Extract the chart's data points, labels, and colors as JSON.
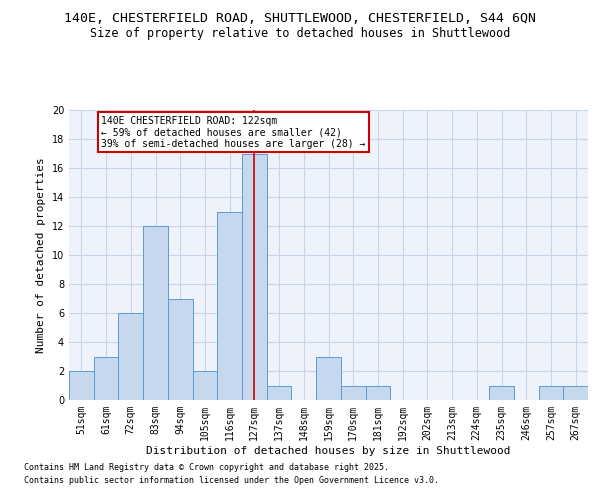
{
  "title_line1": "140E, CHESTERFIELD ROAD, SHUTTLEWOOD, CHESTERFIELD, S44 6QN",
  "title_line2": "Size of property relative to detached houses in Shuttlewood",
  "xlabel": "Distribution of detached houses by size in Shuttlewood",
  "ylabel": "Number of detached properties",
  "categories": [
    "51sqm",
    "61sqm",
    "72sqm",
    "83sqm",
    "94sqm",
    "105sqm",
    "116sqm",
    "127sqm",
    "137sqm",
    "148sqm",
    "159sqm",
    "170sqm",
    "181sqm",
    "192sqm",
    "202sqm",
    "213sqm",
    "224sqm",
    "235sqm",
    "246sqm",
    "257sqm",
    "267sqm"
  ],
  "values": [
    2,
    3,
    6,
    12,
    7,
    2,
    13,
    17,
    1,
    0,
    3,
    1,
    1,
    0,
    0,
    0,
    0,
    1,
    0,
    1,
    1
  ],
  "bar_color": "#c5d8ed",
  "bar_edge_color": "#5b9bd5",
  "red_line_index": 7.0,
  "annotation_text": "140E CHESTERFIELD ROAD: 122sqm\n← 59% of detached houses are smaller (42)\n39% of semi-detached houses are larger (28) →",
  "annotation_box_color": "#ffffff",
  "annotation_box_edge": "#cc0000",
  "red_line_color": "#cc0000",
  "ylim": [
    0,
    20
  ],
  "yticks": [
    0,
    2,
    4,
    6,
    8,
    10,
    12,
    14,
    16,
    18,
    20
  ],
  "grid_color": "#c8d4e8",
  "background_color": "#eef2fa",
  "footer_line1": "Contains HM Land Registry data © Crown copyright and database right 2025.",
  "footer_line2": "Contains public sector information licensed under the Open Government Licence v3.0.",
  "title_fontsize": 9.5,
  "subtitle_fontsize": 8.5,
  "axis_label_fontsize": 8,
  "tick_fontsize": 7,
  "annotation_fontsize": 7,
  "footer_fontsize": 6
}
